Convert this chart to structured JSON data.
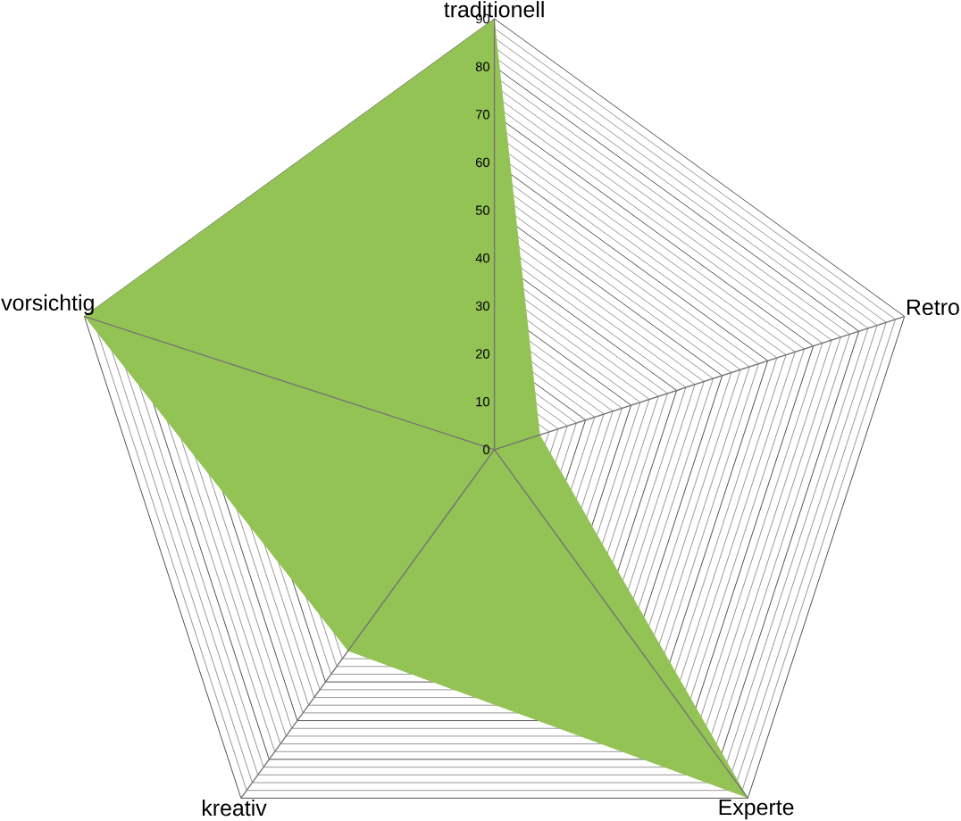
{
  "chart_data": {
    "type": "radar",
    "categories": [
      "traditionell",
      "Retro",
      "Experte",
      "kreativ",
      "vorsichtig"
    ],
    "series": [
      {
        "color": "#94c355",
        "values": [
          90,
          10,
          90,
          52,
          90
        ]
      }
    ],
    "ylim": [
      0,
      90
    ],
    "yticks": [
      0,
      10,
      20,
      30,
      40,
      50,
      60,
      70,
      80,
      90
    ],
    "grid": true
  }
}
